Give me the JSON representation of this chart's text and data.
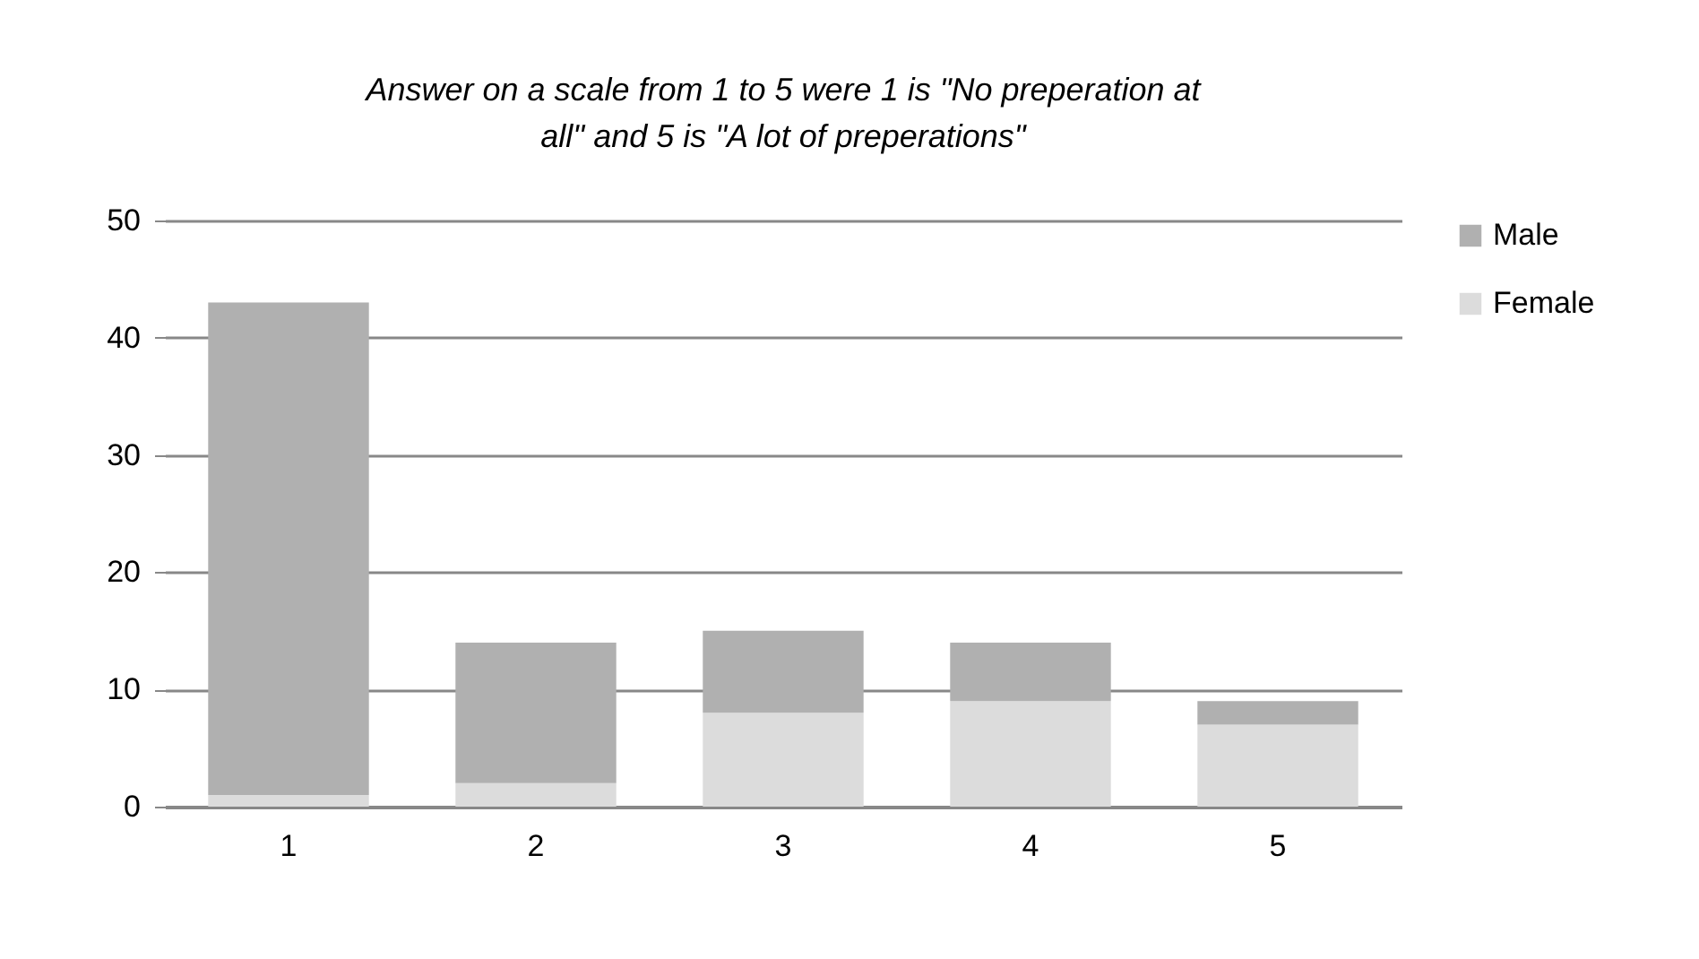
{
  "chart_data": {
    "type": "bar",
    "title": "Answer on a scale from 1 to 5 were 1 is \"No preperation at all\" and 5 is \"A lot of preperations\"",
    "categories": [
      "1",
      "2",
      "3",
      "4",
      "5"
    ],
    "stacked": true,
    "series": [
      {
        "name": "Female",
        "color": "#dcdcdc",
        "values": [
          1,
          2,
          8,
          9,
          7
        ]
      },
      {
        "name": "Male",
        "color": "#b0b0b0",
        "values": [
          42,
          12,
          7,
          5,
          2
        ]
      }
    ],
    "ylim": [
      0,
      50
    ],
    "yticks": [
      0,
      10,
      20,
      30,
      40,
      50
    ],
    "grid": "y",
    "legend": "right"
  }
}
